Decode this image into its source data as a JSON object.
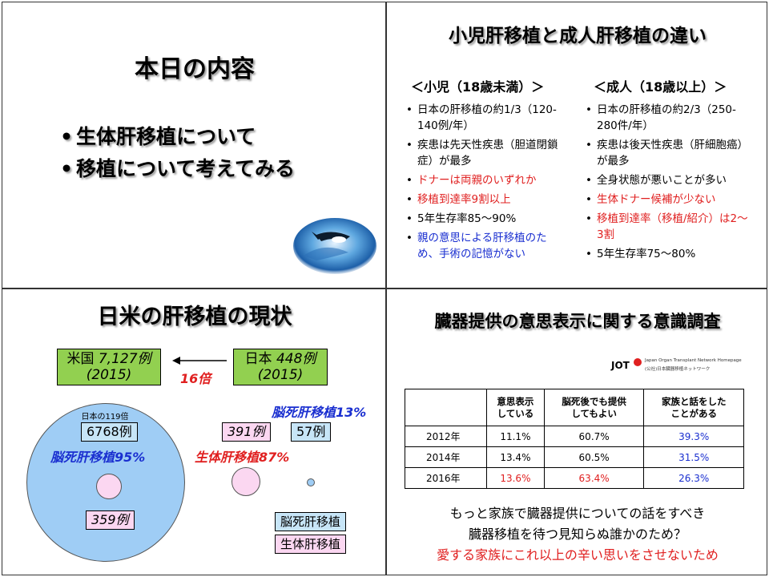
{
  "panel1": {
    "title": "本日の内容",
    "bullets": [
      "生体肝移植について",
      "移植について考えてみる"
    ]
  },
  "panel2": {
    "title": "小児肝移植と成人肝移植の違い",
    "child": {
      "heading": "＜小児（18歳未満）＞",
      "items": [
        {
          "text": "日本の肝移植の約1/3（120-140例/年）",
          "color": "#000000"
        },
        {
          "text": "疾患は先天性疾患（胆道閉鎖症）が最多",
          "color": "#000000"
        },
        {
          "text": "ドナーは両親のいずれか",
          "color": "#e02020"
        },
        {
          "text": "移植到達率9割以上",
          "color": "#e02020"
        },
        {
          "text": "5年生存率85～90%",
          "color": "#000000"
        },
        {
          "text": "親の意思による肝移植のため、手術の記憶がない",
          "color": "#1a2fd0"
        }
      ]
    },
    "adult": {
      "heading": "＜成人（18歳以上）＞",
      "items": [
        {
          "text": "日本の肝移植の約2/3（250-280件/年）",
          "color": "#000000"
        },
        {
          "text": "疾患は後天性疾患（肝細胞癌）が最多",
          "color": "#000000"
        },
        {
          "text": "全身状態が悪いことが多い",
          "color": "#000000"
        },
        {
          "text": "生体ドナー候補が少ない",
          "color": "#e02020"
        },
        {
          "text": "移植到達率（移植/紹介）は2～3割",
          "color": "#e02020"
        },
        {
          "text": "5年生存率75～80%",
          "color": "#000000"
        }
      ]
    }
  },
  "panel3": {
    "title": "日米の肝移植の現状",
    "us_box": {
      "country": "米国",
      "count": "7,127例",
      "year": "(2015)"
    },
    "jp_box": {
      "country": "日本",
      "count": "448例",
      "year": "(2015)"
    },
    "arrow_label": "16倍",
    "ratio_label": "日本の119倍",
    "us_brain_dead_count": "6768例",
    "us_brain_dead_label": "脳死肝移植95%",
    "us_living_count": "359例",
    "jp_living_count": "391例",
    "jp_brain_dead_count": "57例",
    "jp_brain_dead_label": "脳死肝移植13%",
    "jp_living_label": "生体肝移植87%",
    "legend": {
      "brain_dead": "脳死肝移植",
      "living": "生体肝移植"
    },
    "colors": {
      "brain_dead": "#9fcdf5",
      "living": "#fbd7f1",
      "green": "#92d050"
    }
  },
  "panel4": {
    "title": "臓器提供の意思表示に関する意識調査",
    "logo": {
      "abbr": "JOT",
      "name": "Japan Organ Transplant Network Homepage",
      "sub": "(公社)日本臓器移植ネットワーク"
    },
    "table": {
      "headers": [
        "",
        "意思表示\nしている",
        "脳死後でも提供\nしてもよい",
        "家族と話をした\nことがある"
      ],
      "rows": [
        {
          "year": "2012年",
          "values": [
            "11.1%",
            "60.7%",
            "39.3%"
          ],
          "colors": [
            "#000000",
            "#000000",
            "#1a2fd0"
          ]
        },
        {
          "year": "2014年",
          "values": [
            "13.4%",
            "60.5%",
            "31.5%"
          ],
          "colors": [
            "#000000",
            "#000000",
            "#1a2fd0"
          ]
        },
        {
          "year": "2016年",
          "values": [
            "13.6%",
            "63.4%",
            "26.3%"
          ],
          "colors": [
            "#e02020",
            "#e02020",
            "#1a2fd0"
          ]
        }
      ]
    },
    "messages": [
      {
        "text": "もっと家族で臓器提供についての話をすべき",
        "color": "#000000"
      },
      {
        "text": "臓器移植を待つ見知らぬ誰かのため？",
        "color": "#000000"
      },
      {
        "text": "愛する家族にこれ以上の辛い思いをさせないため",
        "color": "#e02020"
      }
    ]
  }
}
